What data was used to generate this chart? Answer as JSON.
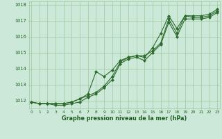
{
  "hours": [
    0,
    1,
    2,
    3,
    4,
    5,
    6,
    7,
    8,
    9,
    10,
    11,
    12,
    13,
    14,
    15,
    16,
    17,
    18,
    19,
    20,
    21,
    22,
    23
  ],
  "series1": [
    1011.9,
    1011.8,
    1011.8,
    1011.8,
    1011.8,
    1011.9,
    1012.1,
    1012.3,
    1012.5,
    1012.9,
    1013.5,
    1014.4,
    1014.7,
    1014.8,
    1014.8,
    1015.1,
    1015.6,
    1017.1,
    1016.2,
    1017.3,
    1017.2,
    1017.2,
    1017.3,
    1017.6
  ],
  "series2": [
    1011.9,
    1011.8,
    1011.8,
    1011.7,
    1011.7,
    1011.8,
    1011.9,
    1012.2,
    1012.4,
    1012.8,
    1013.3,
    1014.3,
    1014.6,
    1014.7,
    1014.5,
    1015.0,
    1015.5,
    1016.9,
    1016.0,
    1017.1,
    1017.1,
    1017.1,
    1017.2,
    1017.5
  ],
  "series3": [
    1011.9,
    1011.8,
    1011.8,
    1011.8,
    1011.8,
    1011.9,
    1012.1,
    1012.4,
    1013.8,
    1013.5,
    1013.9,
    1014.5,
    1014.7,
    1014.8,
    1014.7,
    1015.3,
    1016.2,
    1017.3,
    1016.5,
    1017.3,
    1017.3,
    1017.3,
    1017.4,
    1017.7
  ],
  "line_color": "#2d6a2d",
  "bg_color": "#cce8d8",
  "grid_color": "#9dc89d",
  "text_color": "#1e5c1e",
  "ylim_min": 1011.5,
  "ylim_max": 1018.2,
  "xlim_min": -0.3,
  "xlim_max": 23.3,
  "yticks": [
    1012,
    1013,
    1014,
    1015,
    1016,
    1017,
    1018
  ],
  "xlabel_label": "Graphe pression niveau de la mer (hPa)",
  "marker": "D",
  "marker_size": 2.0,
  "line_width": 0.8
}
